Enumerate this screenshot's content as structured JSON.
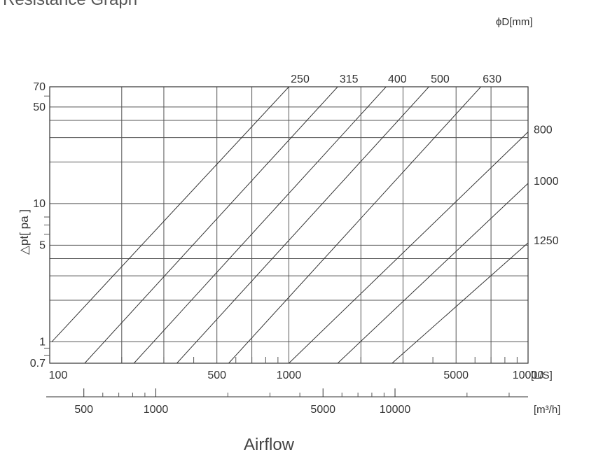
{
  "chart_data": {
    "type": "line",
    "title": "Resistance Graph",
    "diameter_unit_label": "ϕD[mm]",
    "xlabel": "Airflow",
    "ylabel": "△pt[ pa ]",
    "x_unit_primary": "[L/S]",
    "x_unit_secondary": "[m³/h]",
    "x_scale": "log",
    "y_scale": "log",
    "xlim": [
      100,
      10000
    ],
    "ylim": [
      0.7,
      70
    ],
    "grid": true,
    "x_ticks_primary": [
      "100",
      "500",
      "1000",
      "5000",
      "10000"
    ],
    "x_ticks_secondary": [
      "500",
      "1000",
      "5000",
      "10000"
    ],
    "y_ticks": [
      "70",
      "50",
      "10",
      "5",
      "1",
      "0.7"
    ],
    "series": [
      {
        "name": "250",
        "points": [
          [
            102,
            1.0
          ],
          [
            1000,
            70
          ]
        ]
      },
      {
        "name": "315",
        "points": [
          [
            140,
            0.7
          ],
          [
            1600,
            70
          ]
        ]
      },
      {
        "name": "400",
        "points": [
          [
            225,
            0.7
          ],
          [
            2550,
            70
          ]
        ]
      },
      {
        "name": "500",
        "points": [
          [
            340,
            0.7
          ],
          [
            3850,
            70
          ]
        ]
      },
      {
        "name": "630",
        "points": [
          [
            560,
            0.7
          ],
          [
            6350,
            70
          ]
        ]
      },
      {
        "name": "800",
        "points": [
          [
            1000,
            0.7
          ],
          [
            10000,
            33
          ]
        ]
      },
      {
        "name": "1000",
        "points": [
          [
            1600,
            0.7
          ],
          [
            10000,
            14
          ]
        ]
      },
      {
        "name": "1250",
        "points": [
          [
            2700,
            0.7
          ],
          [
            10000,
            5.2
          ]
        ]
      }
    ]
  }
}
